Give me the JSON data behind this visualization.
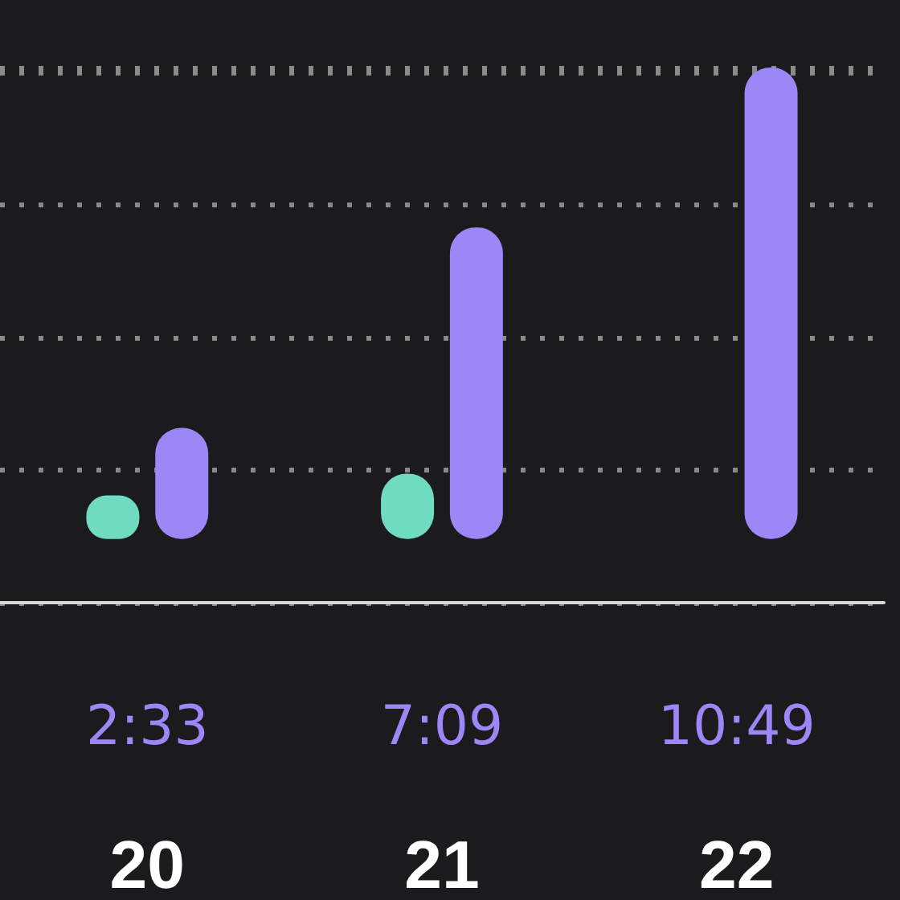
{
  "chart_data": {
    "type": "bar",
    "grid": true,
    "tick_labels": "x",
    "categories": [
      "20",
      "21",
      "22"
    ],
    "series": [
      {
        "color": "#6fdcc2",
        "values": [
          1.0,
          1.5,
          null
        ]
      },
      {
        "color": "#9d87f7",
        "values": [
          2.55,
          7.15,
          10.8167
        ],
        "value_labels": [
          "2:33",
          "7:09",
          "10:49"
        ]
      }
    ]
  }
}
